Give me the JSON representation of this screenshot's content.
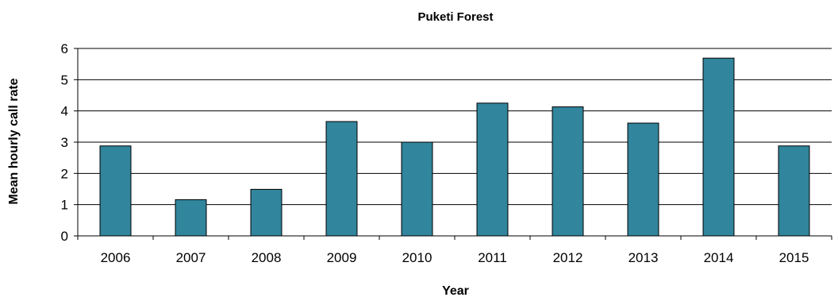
{
  "chart_data": {
    "type": "bar",
    "title": "Puketi Forest",
    "xlabel": "Year",
    "ylabel": "Mean hourly call rate",
    "categories": [
      "2006",
      "2007",
      "2008",
      "2009",
      "2010",
      "2011",
      "2012",
      "2013",
      "2014",
      "2015"
    ],
    "values": [
      2.88,
      1.16,
      1.49,
      3.66,
      3.0,
      4.25,
      4.13,
      3.61,
      5.69,
      2.88
    ],
    "ylim": [
      0,
      6
    ],
    "yticks": [
      0,
      1,
      2,
      3,
      4,
      5,
      6
    ],
    "grid": true,
    "legend": "none",
    "colors": {
      "bar_fill": "#31859c",
      "bar_stroke": "#000000",
      "grid": "#000000",
      "axis": "#000000"
    }
  }
}
